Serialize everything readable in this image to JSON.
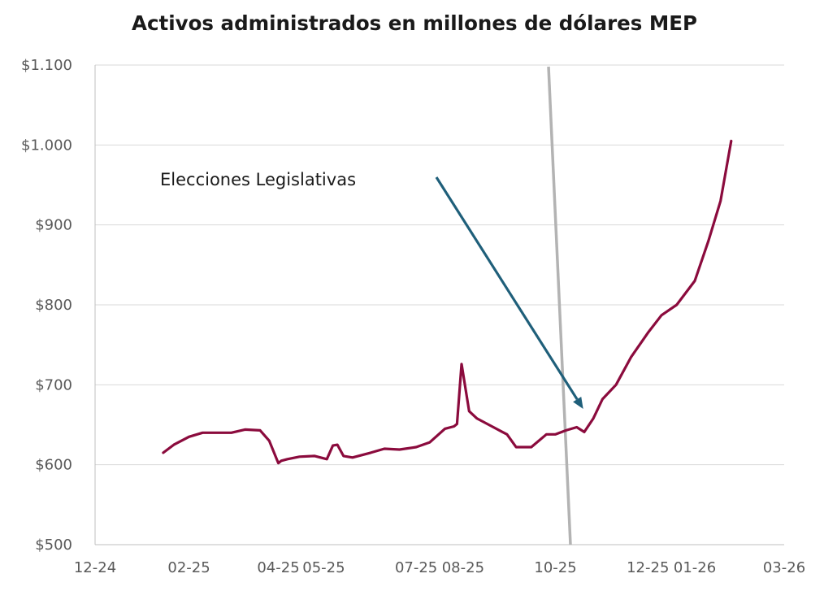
{
  "chart_data": {
    "type": "line",
    "title": "Activos administrados en millones de dólares MEP",
    "xlabel": "",
    "ylabel": "",
    "ylim": [
      500,
      1100
    ],
    "y_ticks": [
      500,
      600,
      700,
      800,
      900,
      1000,
      1100
    ],
    "y_tick_labels": [
      "$500",
      "$600",
      "$700",
      "$800",
      "$900",
      "$1.000",
      "$1.100"
    ],
    "xlim": [
      "2024-12-01",
      "2026-03-01"
    ],
    "x_ticks": [
      "2024-12-01",
      "2025-02-01",
      "2025-04-01",
      "2025-05-01",
      "2025-07-01",
      "2025-08-01",
      "2025-10-01",
      "2025-12-01",
      "2026-01-01",
      "2026-03-01"
    ],
    "x_tick_labels": [
      "12-24",
      "02-25",
      "04-25",
      "05-25",
      "07-25",
      "08-25",
      "10-25",
      "12-25",
      "01-26",
      "03-26"
    ],
    "grid": true,
    "legend": "none",
    "colors": {
      "series": "#8b0b3d",
      "arrow": "#1f5f7a",
      "marker_line": "#b3b3b3",
      "grid": "#d9d9d9"
    },
    "series": [
      {
        "x": [
          "2025-01-15",
          "2025-01-22",
          "2025-02-01",
          "2025-02-10",
          "2025-02-20",
          "2025-03-01",
          "2025-03-10",
          "2025-03-20",
          "2025-03-26",
          "2025-04-01",
          "2025-04-03",
          "2025-04-07",
          "2025-04-15",
          "2025-04-25",
          "2025-05-03",
          "2025-05-07",
          "2025-05-10",
          "2025-05-14",
          "2025-05-20",
          "2025-06-01",
          "2025-06-10",
          "2025-06-20",
          "2025-07-01",
          "2025-07-10",
          "2025-07-20",
          "2025-07-26",
          "2025-07-28",
          "2025-07-31",
          "2025-08-05",
          "2025-08-10",
          "2025-08-20",
          "2025-08-27",
          "2025-08-30",
          "2025-09-05",
          "2025-09-15",
          "2025-09-25",
          "2025-10-01",
          "2025-10-08",
          "2025-10-15",
          "2025-10-20",
          "2025-10-26",
          "2025-11-01",
          "2025-11-10",
          "2025-11-20",
          "2025-12-01",
          "2025-12-10",
          "2025-12-20",
          "2026-01-01",
          "2026-01-10",
          "2026-01-18",
          "2026-01-25"
        ],
        "y": [
          615,
          625,
          635,
          640,
          640,
          640,
          644,
          643,
          630,
          602,
          605,
          607,
          610,
          611,
          607,
          624,
          625,
          611,
          609,
          615,
          620,
          619,
          622,
          628,
          645,
          648,
          651,
          726,
          667,
          658,
          648,
          641,
          638,
          622,
          622,
          638,
          638,
          643,
          647,
          641,
          658,
          682,
          700,
          735,
          765,
          787,
          800,
          830,
          880,
          930,
          1005
        ]
      }
    ],
    "annotations": [
      {
        "text": "Elecciones Legislativas",
        "arrow_to": {
          "x": "2025-10-15",
          "y": 681
        }
      }
    ]
  }
}
